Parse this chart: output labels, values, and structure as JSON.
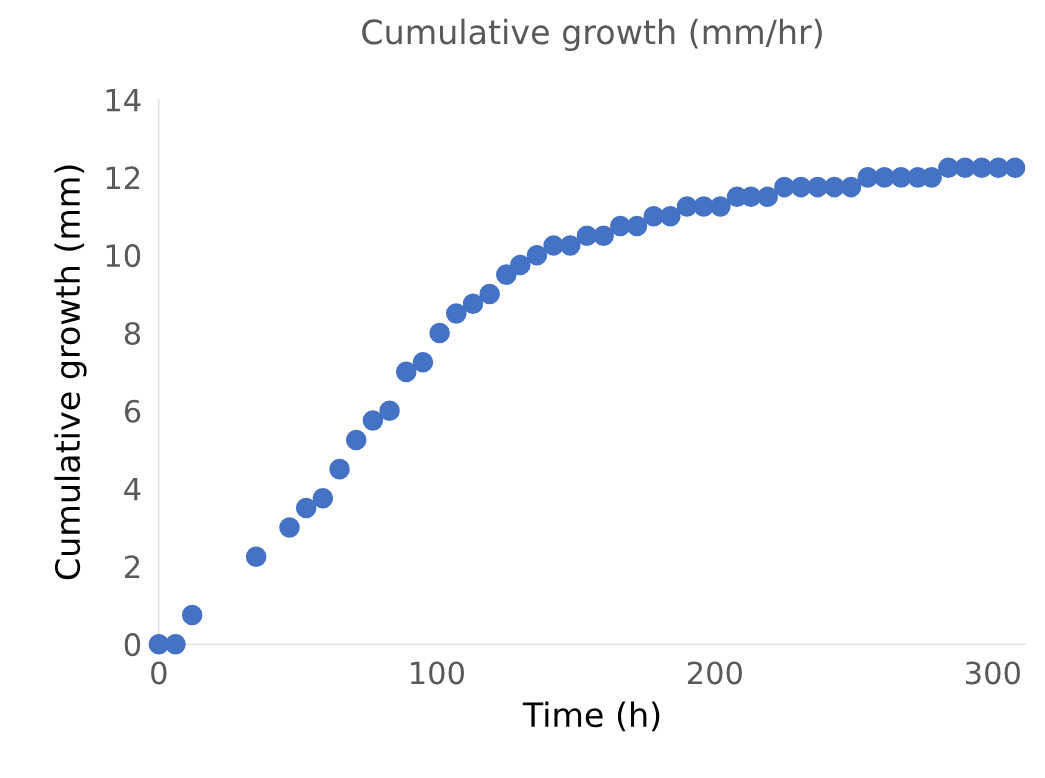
{
  "chart_data": {
    "type": "scatter",
    "title": "Cumulative growth (mm/hr)",
    "xlabel": "Time (h)",
    "ylabel": "Cumulative growth (mm)",
    "x": [
      0,
      6,
      12,
      35,
      47,
      53,
      59,
      65,
      71,
      77,
      83,
      89,
      95,
      101,
      107,
      113,
      119,
      125,
      130,
      136,
      142,
      148,
      154,
      160,
      166,
      172,
      178,
      184,
      190,
      196,
      202,
      208,
      213,
      219,
      225,
      231,
      237,
      243,
      249,
      255,
      261,
      267,
      273,
      278,
      284,
      290,
      296,
      302,
      308
    ],
    "series": [
      {
        "color": "#4472c4",
        "values": [
          0,
          0,
          0.75,
          2.25,
          3,
          3.5,
          3.75,
          4.5,
          5.25,
          5.75,
          6,
          7,
          7.25,
          8,
          8.5,
          8.75,
          9,
          9.5,
          9.75,
          10,
          10.25,
          10.25,
          10.5,
          10.5,
          10.75,
          10.75,
          11,
          11,
          11.25,
          11.25,
          11.25,
          11.5,
          11.5,
          11.5,
          11.75,
          11.75,
          11.75,
          11.75,
          11.75,
          12,
          12,
          12,
          12,
          12,
          12.25,
          12.25,
          12.25,
          12.25,
          12.25
        ]
      }
    ],
    "xlim": [
      0,
      312
    ],
    "xticks": [
      0,
      100,
      200,
      300
    ],
    "ylim": [
      0,
      14
    ],
    "yticks": [
      0,
      2,
      4,
      6,
      8,
      10,
      12,
      14
    ],
    "marker": "circle",
    "grid": false,
    "legend": false
  }
}
